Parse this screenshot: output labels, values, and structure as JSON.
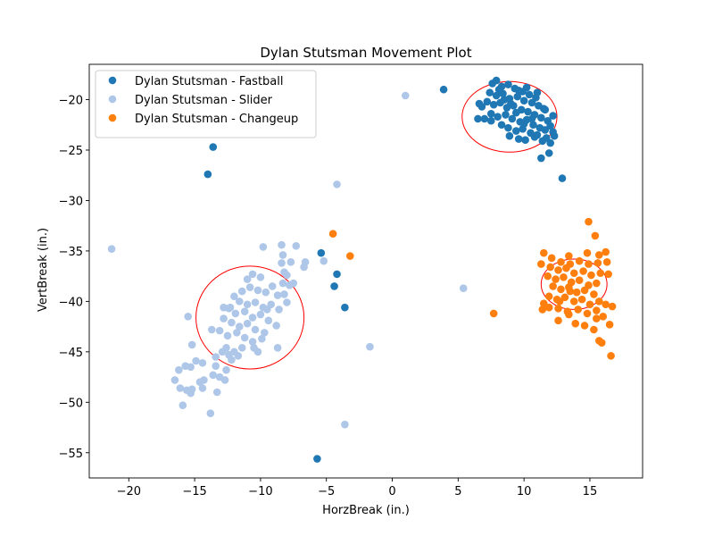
{
  "chart_data": {
    "type": "scatter",
    "title": "Dylan Stutsman Movement Plot",
    "xlabel": "HorzBreak (in.)",
    "ylabel": "VertBreak (in.)",
    "xlim": [
      -23,
      19
    ],
    "ylim": [
      -57.5,
      -16.5
    ],
    "xticks": [
      -20,
      -15,
      -10,
      -5,
      0,
      5,
      10,
      15
    ],
    "yticks": [
      -55,
      -50,
      -45,
      -40,
      -35,
      -30,
      -25,
      -20
    ],
    "grid": false,
    "legend_position": "top-left",
    "series": [
      {
        "name": "Dylan Stutsman - Fastball",
        "color": "#1f77b4",
        "points": [
          [
            7.6,
            -18.4
          ],
          [
            7.9,
            -18.1
          ],
          [
            8.3,
            -18.7
          ],
          [
            8.8,
            -18.5
          ],
          [
            9.3,
            -18.9
          ],
          [
            9.9,
            -19.2
          ],
          [
            10.4,
            -19.5
          ],
          [
            10.9,
            -19.8
          ],
          [
            7.4,
            -19.3
          ],
          [
            7.9,
            -19.6
          ],
          [
            8.4,
            -19.4
          ],
          [
            8.9,
            -19.9
          ],
          [
            9.5,
            -19.7
          ],
          [
            10.0,
            -20.1
          ],
          [
            10.6,
            -20.3
          ],
          [
            11.1,
            -20.6
          ],
          [
            11.5,
            -20.9
          ],
          [
            7.2,
            -20.2
          ],
          [
            7.7,
            -20.5
          ],
          [
            8.2,
            -20.3
          ],
          [
            8.7,
            -20.8
          ],
          [
            9.2,
            -20.6
          ],
          [
            9.8,
            -21.0
          ],
          [
            10.3,
            -21.2
          ],
          [
            10.8,
            -21.5
          ],
          [
            11.3,
            -21.8
          ],
          [
            11.8,
            -22.1
          ],
          [
            7.5,
            -21.4
          ],
          [
            8.0,
            -21.7
          ],
          [
            8.6,
            -21.5
          ],
          [
            9.1,
            -21.9
          ],
          [
            9.7,
            -22.2
          ],
          [
            10.2,
            -22.0
          ],
          [
            10.7,
            -22.5
          ],
          [
            11.2,
            -22.8
          ],
          [
            11.6,
            -23.0
          ],
          [
            12.0,
            -22.6
          ],
          [
            8.3,
            -22.5
          ],
          [
            8.8,
            -22.8
          ],
          [
            9.4,
            -23.1
          ],
          [
            9.9,
            -22.9
          ],
          [
            10.5,
            -23.3
          ],
          [
            11.0,
            -23.5
          ],
          [
            11.7,
            -23.8
          ],
          [
            12.2,
            -23.2
          ],
          [
            8.9,
            -23.6
          ],
          [
            9.6,
            -23.9
          ],
          [
            10.1,
            -24.0
          ],
          [
            10.8,
            -23.7
          ],
          [
            11.4,
            -24.1
          ],
          [
            12.0,
            -24.3
          ],
          [
            6.6,
            -20.4
          ],
          [
            6.8,
            -20.7
          ],
          [
            6.5,
            -21.9
          ],
          [
            7.0,
            -21.9
          ],
          [
            7.5,
            -22.1
          ],
          [
            8.1,
            -19.0
          ],
          [
            9.6,
            -19.1
          ],
          [
            10.2,
            -18.8
          ],
          [
            11.0,
            -19.3
          ],
          [
            11.6,
            -21.0
          ],
          [
            12.2,
            -21.6
          ],
          [
            8.5,
            -20.0
          ],
          [
            9.0,
            -20.4
          ],
          [
            9.4,
            -21.3
          ],
          [
            10.0,
            -22.4
          ],
          [
            10.6,
            -21.9
          ],
          [
            11.9,
            -25.3
          ],
          [
            11.3,
            -25.8
          ],
          [
            12.9,
            -27.8
          ],
          [
            12.3,
            -23.6
          ],
          [
            3.9,
            -19.0
          ],
          [
            -13.6,
            -24.7
          ],
          [
            -14.0,
            -27.4
          ],
          [
            -5.4,
            -35.2
          ],
          [
            -4.2,
            -37.3
          ],
          [
            -4.4,
            -38.5
          ],
          [
            -3.6,
            -40.6
          ],
          [
            -5.7,
            -55.6
          ]
        ]
      },
      {
        "name": "Dylan Stutsman - Slider",
        "color": "#aec7e8",
        "points": [
          [
            1.0,
            -19.6
          ],
          [
            -21.3,
            -34.8
          ],
          [
            -4.2,
            -28.4
          ],
          [
            5.4,
            -38.7
          ],
          [
            -1.7,
            -44.5
          ],
          [
            -3.6,
            -52.2
          ],
          [
            -9.8,
            -34.6
          ],
          [
            -8.4,
            -34.4
          ],
          [
            -7.3,
            -34.5
          ],
          [
            -8.3,
            -35.4
          ],
          [
            -6.6,
            -36.1
          ],
          [
            -5.2,
            -36.0
          ],
          [
            -6.7,
            -36.6
          ],
          [
            -7.7,
            -36.1
          ],
          [
            -8.4,
            -36.2
          ],
          [
            -8.2,
            -37.1
          ],
          [
            -8.0,
            -37.4
          ],
          [
            -10.0,
            -37.6
          ],
          [
            -10.6,
            -37.3
          ],
          [
            -11.0,
            -37.8
          ],
          [
            -8.3,
            -38.2
          ],
          [
            -7.8,
            -38.4
          ],
          [
            -7.5,
            -38.2
          ],
          [
            -11.4,
            -39.0
          ],
          [
            -10.8,
            -38.6
          ],
          [
            -10.2,
            -38.9
          ],
          [
            -9.6,
            -39.1
          ],
          [
            -9.1,
            -38.5
          ],
          [
            -8.7,
            -39.4
          ],
          [
            -8.2,
            -39.3
          ],
          [
            -12.0,
            -39.5
          ],
          [
            -11.6,
            -40.0
          ],
          [
            -11.0,
            -40.3
          ],
          [
            -10.4,
            -40.1
          ],
          [
            -9.8,
            -40.6
          ],
          [
            -9.2,
            -40.3
          ],
          [
            -8.6,
            -40.8
          ],
          [
            -8.0,
            -40.1
          ],
          [
            -12.4,
            -40.7
          ],
          [
            -11.9,
            -41.2
          ],
          [
            -11.2,
            -41.0
          ],
          [
            -10.6,
            -41.6
          ],
          [
            -10.0,
            -41.3
          ],
          [
            -9.4,
            -41.9
          ],
          [
            -12.8,
            -41.7
          ],
          [
            -12.2,
            -42.1
          ],
          [
            -11.6,
            -42.5
          ],
          [
            -11.0,
            -42.2
          ],
          [
            -10.4,
            -42.8
          ],
          [
            -9.7,
            -43.1
          ],
          [
            -8.8,
            -42.4
          ],
          [
            -13.1,
            -42.9
          ],
          [
            -12.5,
            -43.4
          ],
          [
            -11.8,
            -43.1
          ],
          [
            -11.2,
            -43.6
          ],
          [
            -10.6,
            -44.0
          ],
          [
            -9.9,
            -43.7
          ],
          [
            -12.6,
            -44.6
          ],
          [
            -12.0,
            -45.0
          ],
          [
            -11.4,
            -44.6
          ],
          [
            -10.5,
            -44.6
          ],
          [
            -10.2,
            -45.0
          ],
          [
            -8.7,
            -44.6
          ],
          [
            -12.3,
            -40.6
          ],
          [
            -9.5,
            -40.8
          ],
          [
            -13.7,
            -42.8
          ],
          [
            -12.9,
            -45.0
          ],
          [
            -13.4,
            -45.5
          ],
          [
            -12.4,
            -45.3
          ],
          [
            -11.7,
            -45.4
          ],
          [
            -12.2,
            -45.8
          ],
          [
            -13.4,
            -46.4
          ],
          [
            -12.6,
            -46.8
          ],
          [
            -14.4,
            -46.1
          ],
          [
            -14.9,
            -45.9
          ],
          [
            -15.3,
            -46.5
          ],
          [
            -15.7,
            -46.4
          ],
          [
            -16.2,
            -46.8
          ],
          [
            -13.6,
            -47.3
          ],
          [
            -13.1,
            -47.5
          ],
          [
            -14.3,
            -47.8
          ],
          [
            -12.7,
            -47.8
          ],
          [
            -16.5,
            -47.8
          ],
          [
            -14.6,
            -48.0
          ],
          [
            -14.4,
            -48.6
          ],
          [
            -15.2,
            -48.7
          ],
          [
            -16.1,
            -48.6
          ],
          [
            -15.6,
            -48.8
          ],
          [
            -13.3,
            -49.0
          ],
          [
            -15.3,
            -49.1
          ],
          [
            -15.9,
            -50.3
          ],
          [
            -13.8,
            -51.1
          ],
          [
            -15.2,
            -44.3
          ],
          [
            -15.5,
            -41.5
          ],
          [
            -12.8,
            -40.6
          ]
        ]
      },
      {
        "name": "Dylan Stutsman - Changeup",
        "color": "#ff7f0e",
        "points": [
          [
            -4.5,
            -33.3
          ],
          [
            -3.2,
            -35.5
          ],
          [
            7.7,
            -41.2
          ],
          [
            14.9,
            -32.1
          ],
          [
            15.4,
            -33.5
          ],
          [
            11.5,
            -35.2
          ],
          [
            13.4,
            -35.5
          ],
          [
            14.8,
            -35.2
          ],
          [
            15.7,
            -35.4
          ],
          [
            16.2,
            -35.1
          ],
          [
            12.1,
            -35.7
          ],
          [
            12.8,
            -36.1
          ],
          [
            13.5,
            -36.3
          ],
          [
            14.2,
            -36.0
          ],
          [
            14.9,
            -36.3
          ],
          [
            15.6,
            -36.2
          ],
          [
            16.3,
            -36.1
          ],
          [
            11.3,
            -36.3
          ],
          [
            12.0,
            -36.6
          ],
          [
            12.6,
            -36.9
          ],
          [
            13.2,
            -36.7
          ],
          [
            13.8,
            -37.2
          ],
          [
            14.5,
            -37.0
          ],
          [
            15.1,
            -37.4
          ],
          [
            15.8,
            -37.2
          ],
          [
            16.4,
            -37.3
          ],
          [
            11.8,
            -37.5
          ],
          [
            12.4,
            -37.8
          ],
          [
            13.0,
            -37.6
          ],
          [
            13.6,
            -38.1
          ],
          [
            14.2,
            -37.9
          ],
          [
            14.9,
            -38.4
          ],
          [
            15.5,
            -38.2
          ],
          [
            12.2,
            -38.5
          ],
          [
            12.8,
            -38.8
          ],
          [
            13.4,
            -38.6
          ],
          [
            14.0,
            -39.1
          ],
          [
            14.6,
            -38.9
          ],
          [
            15.3,
            -39.3
          ],
          [
            11.9,
            -39.5
          ],
          [
            12.5,
            -39.8
          ],
          [
            13.1,
            -39.6
          ],
          [
            13.8,
            -40.0
          ],
          [
            14.4,
            -39.8
          ],
          [
            15.0,
            -40.3
          ],
          [
            15.7,
            -40.0
          ],
          [
            11.5,
            -40.2
          ],
          [
            11.9,
            -40.6
          ],
          [
            12.6,
            -40.7
          ],
          [
            13.3,
            -41.0
          ],
          [
            14.1,
            -40.8
          ],
          [
            14.8,
            -41.2
          ],
          [
            15.5,
            -40.9
          ],
          [
            16.2,
            -40.3
          ],
          [
            16.7,
            -40.5
          ],
          [
            11.4,
            -40.8
          ],
          [
            12.6,
            -41.9
          ],
          [
            13.4,
            -41.3
          ],
          [
            13.9,
            -42.2
          ],
          [
            14.6,
            -42.4
          ],
          [
            15.5,
            -41.7
          ],
          [
            16.0,
            -41.5
          ],
          [
            15.3,
            -42.8
          ],
          [
            16.5,
            -42.3
          ],
          [
            15.7,
            -43.9
          ],
          [
            15.9,
            -44.1
          ],
          [
            16.6,
            -45.4
          ],
          [
            12.7,
            -40.0
          ],
          [
            13.5,
            -39.0
          ]
        ]
      }
    ],
    "ellipses": [
      {
        "cx": 8.9,
        "cy": -21.7,
        "rx": 3.6,
        "ry": 3.5,
        "color": "#ff0000"
      },
      {
        "cx": -10.8,
        "cy": -41.6,
        "rx": 4.1,
        "ry": 5.1,
        "color": "#ff0000"
      },
      {
        "cx": 13.8,
        "cy": -38.3,
        "rx": 2.5,
        "ry": 2.5,
        "color": "#ff0000"
      }
    ]
  }
}
